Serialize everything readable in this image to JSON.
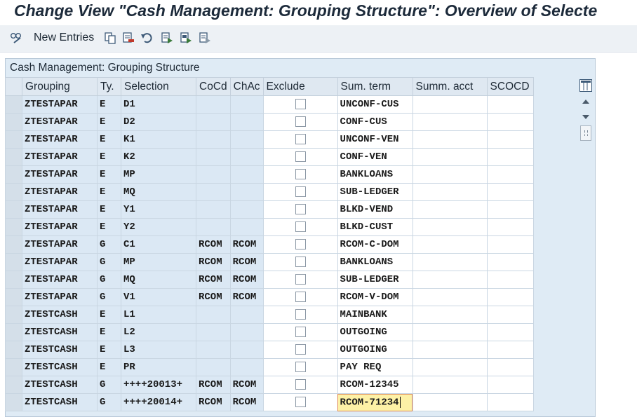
{
  "window": {
    "title": "Change View \"Cash Management: Grouping Structure\": Overview of Selecte"
  },
  "toolbar": {
    "new_entries_label": "New Entries",
    "icons": [
      "glasses-pencil-icon",
      "copy-icon",
      "delete-icon",
      "undo-icon",
      "select-all-icon",
      "select-block-icon",
      "deselect-all-icon"
    ]
  },
  "panel": {
    "title": "Cash Management: Grouping Structure"
  },
  "table": {
    "columns": [
      "Grouping",
      "Ty.",
      "Selection",
      "CoCd",
      "ChAc",
      "Exclude",
      "Sum. term",
      "Summ. acct",
      "SCOCD"
    ],
    "rows": [
      {
        "grouping": "ZTESTAPAR",
        "ty": "E",
        "selection": "D1",
        "cocd": "",
        "chac": "",
        "exclude": false,
        "sum_term": "UNCONF-CUS",
        "summ_acct": "",
        "scocd": ""
      },
      {
        "grouping": "ZTESTAPAR",
        "ty": "E",
        "selection": "D2",
        "cocd": "",
        "chac": "",
        "exclude": false,
        "sum_term": "CONF-CUS",
        "summ_acct": "",
        "scocd": ""
      },
      {
        "grouping": "ZTESTAPAR",
        "ty": "E",
        "selection": "K1",
        "cocd": "",
        "chac": "",
        "exclude": false,
        "sum_term": "UNCONF-VEN",
        "summ_acct": "",
        "scocd": ""
      },
      {
        "grouping": "ZTESTAPAR",
        "ty": "E",
        "selection": "K2",
        "cocd": "",
        "chac": "",
        "exclude": false,
        "sum_term": "CONF-VEN",
        "summ_acct": "",
        "scocd": ""
      },
      {
        "grouping": "ZTESTAPAR",
        "ty": "E",
        "selection": "MP",
        "cocd": "",
        "chac": "",
        "exclude": false,
        "sum_term": "BANKLOANS",
        "summ_acct": "",
        "scocd": ""
      },
      {
        "grouping": "ZTESTAPAR",
        "ty": "E",
        "selection": "MQ",
        "cocd": "",
        "chac": "",
        "exclude": false,
        "sum_term": "SUB-LEDGER",
        "summ_acct": "",
        "scocd": ""
      },
      {
        "grouping": "ZTESTAPAR",
        "ty": "E",
        "selection": "Y1",
        "cocd": "",
        "chac": "",
        "exclude": false,
        "sum_term": "BLKD-VEND",
        "summ_acct": "",
        "scocd": ""
      },
      {
        "grouping": "ZTESTAPAR",
        "ty": "E",
        "selection": "Y2",
        "cocd": "",
        "chac": "",
        "exclude": false,
        "sum_term": "BLKD-CUST",
        "summ_acct": "",
        "scocd": ""
      },
      {
        "grouping": "ZTESTAPAR",
        "ty": "G",
        "selection": "C1",
        "cocd": "RCOM",
        "chac": "RCOM",
        "exclude": false,
        "sum_term": "RCOM-C-DOM",
        "summ_acct": "",
        "scocd": ""
      },
      {
        "grouping": "ZTESTAPAR",
        "ty": "G",
        "selection": "MP",
        "cocd": "RCOM",
        "chac": "RCOM",
        "exclude": false,
        "sum_term": "BANKLOANS",
        "summ_acct": "",
        "scocd": ""
      },
      {
        "grouping": "ZTESTAPAR",
        "ty": "G",
        "selection": "MQ",
        "cocd": "RCOM",
        "chac": "RCOM",
        "exclude": false,
        "sum_term": "SUB-LEDGER",
        "summ_acct": "",
        "scocd": ""
      },
      {
        "grouping": "ZTESTAPAR",
        "ty": "G",
        "selection": "V1",
        "cocd": "RCOM",
        "chac": "RCOM",
        "exclude": false,
        "sum_term": "RCOM-V-DOM",
        "summ_acct": "",
        "scocd": ""
      },
      {
        "grouping": "ZTESTCASH",
        "ty": "E",
        "selection": "L1",
        "cocd": "",
        "chac": "",
        "exclude": false,
        "sum_term": "MAINBANK",
        "summ_acct": "",
        "scocd": ""
      },
      {
        "grouping": "ZTESTCASH",
        "ty": "E",
        "selection": "L2",
        "cocd": "",
        "chac": "",
        "exclude": false,
        "sum_term": "OUTGOING",
        "summ_acct": "",
        "scocd": ""
      },
      {
        "grouping": "ZTESTCASH",
        "ty": "E",
        "selection": "L3",
        "cocd": "",
        "chac": "",
        "exclude": false,
        "sum_term": "OUTGOING",
        "summ_acct": "",
        "scocd": ""
      },
      {
        "grouping": "ZTESTCASH",
        "ty": "E",
        "selection": "PR",
        "cocd": "",
        "chac": "",
        "exclude": false,
        "sum_term": "PAY REQ",
        "summ_acct": "",
        "scocd": ""
      },
      {
        "grouping": "ZTESTCASH",
        "ty": "G",
        "selection": "++++20013+",
        "cocd": "RCOM",
        "chac": "RCOM",
        "exclude": false,
        "sum_term": "RCOM-12345",
        "summ_acct": "",
        "scocd": ""
      },
      {
        "grouping": "ZTESTCASH",
        "ty": "G",
        "selection": "++++20014+",
        "cocd": "RCOM",
        "chac": "RCOM",
        "exclude": false,
        "sum_term": "RCOM-71234",
        "summ_acct": "",
        "scocd": ""
      }
    ]
  },
  "colors": {
    "readonly_cell": "#dbe8f4",
    "editable_cell": "#ffffff",
    "focused_cell": "#fdf1a6",
    "focus_border": "#e08a5a"
  }
}
